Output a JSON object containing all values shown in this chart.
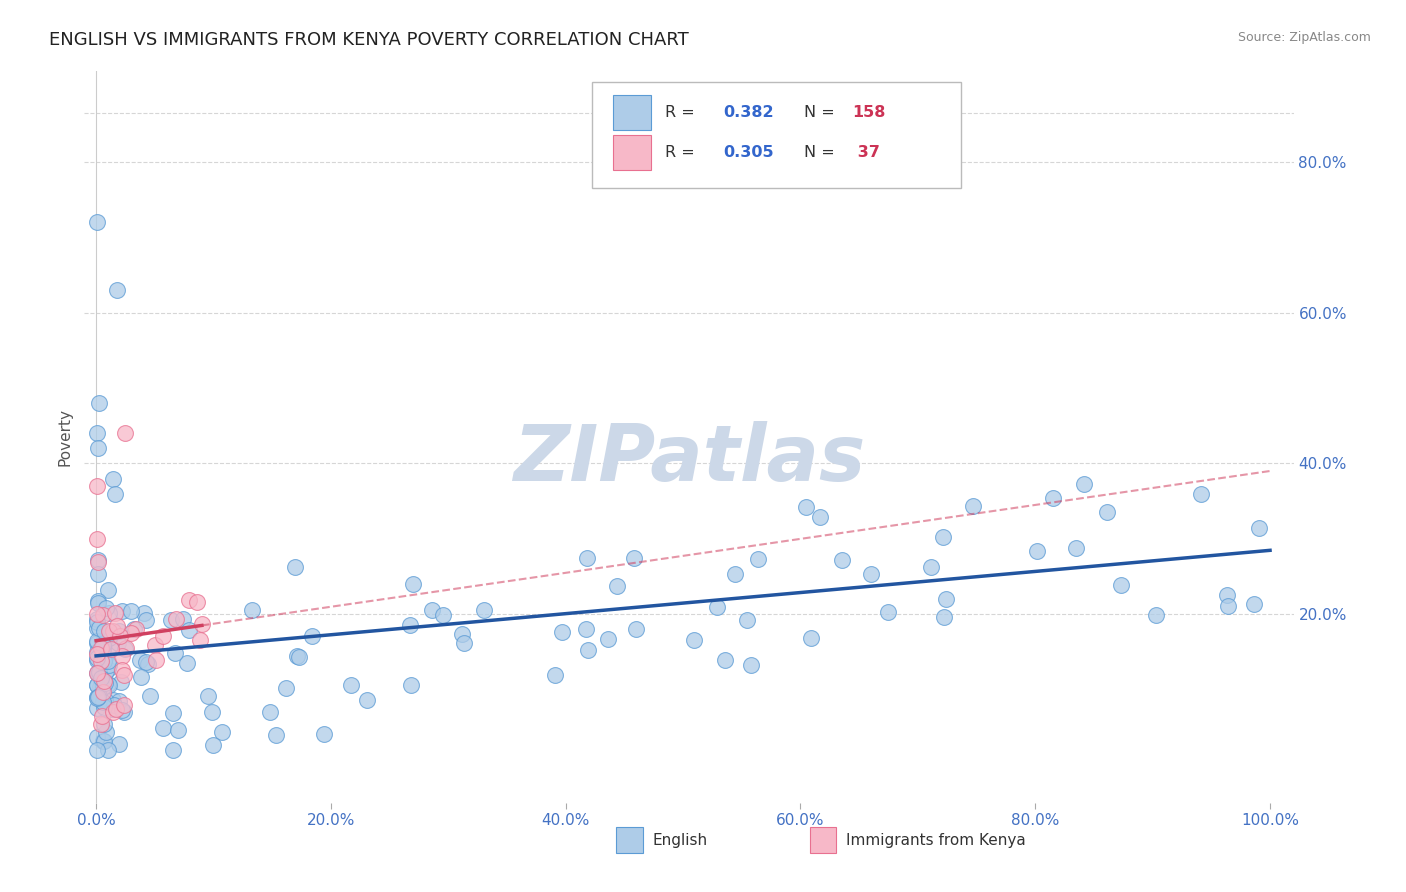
{
  "title": "ENGLISH VS IMMIGRANTS FROM KENYA POVERTY CORRELATION CHART",
  "source": "Source: ZipAtlas.com",
  "ylabel": "Poverty",
  "watermark": "ZIPatlas",
  "series": [
    {
      "name": "English",
      "R": 0.382,
      "N": 158,
      "color": "#aecce8",
      "edge_color": "#5b9bd5",
      "line_color": "#2255a0"
    },
    {
      "name": "Immigrants from Kenya",
      "R": 0.305,
      "N": 37,
      "color": "#f7b8c8",
      "edge_color": "#e87090",
      "line_color": "#d04060"
    }
  ],
  "xtick_labels": [
    "0.0%",
    "20.0%",
    "40.0%",
    "60.0%",
    "80.0%",
    "100.0%"
  ],
  "ytick_labels_right": [
    "20.0%",
    "40.0%",
    "60.0%",
    "80.0%"
  ],
  "grid_color": "#cccccc",
  "background_color": "#ffffff",
  "watermark_color": "#ccd8e8",
  "title_fontsize": 13,
  "tick_fontsize": 11,
  "ylabel_fontsize": 11
}
